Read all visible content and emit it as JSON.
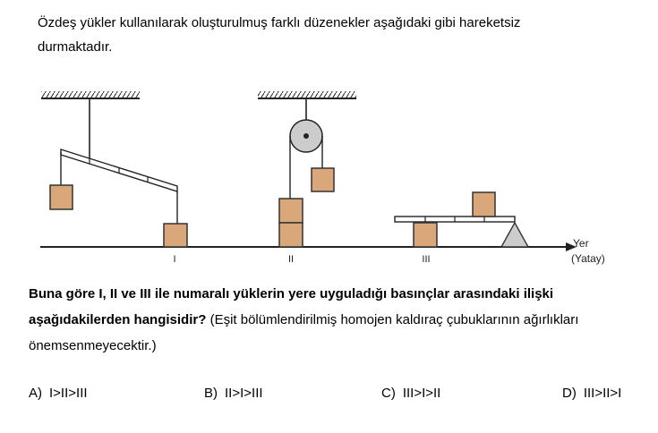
{
  "intro": {
    "line1": "Özdeş yükler kullanılarak oluşturulmuş farklı düzenekler aşağıdaki gibi hareketsiz",
    "line2": "durmaktadır."
  },
  "diagram": {
    "labels": {
      "one": "I",
      "two": "II",
      "three": "III",
      "ground": "Yer",
      "ground_sub": "(Yatay)"
    },
    "colors": {
      "box_fill": "#D9A77A",
      "box_stroke": "#333333",
      "pulley_fill": "#CCCCCC",
      "stroke": "#222222"
    }
  },
  "question": {
    "bold": "Buna göre I, II ve III ile numaralı yüklerin yere uyguladığı basınçlar arasındaki ilişki aşağıdakilerden hangisidir?",
    "normal": "(Eşit bölümlendirilmiş homojen kaldıraç çubuklarının ağırlıkları önemsenmeyecektir.)"
  },
  "options": [
    {
      "letter": "A)",
      "value": "I>II>III"
    },
    {
      "letter": "B)",
      "value": "II>I>III"
    },
    {
      "letter": "C)",
      "value": "III>I>II"
    },
    {
      "letter": "D)",
      "value": "III>II>I"
    }
  ]
}
